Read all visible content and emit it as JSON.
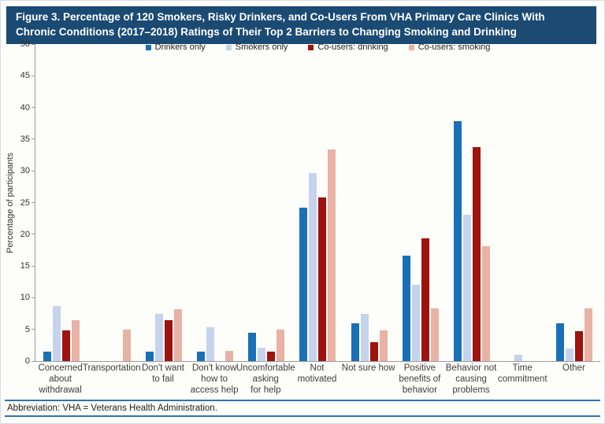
{
  "title": "Figure 3. Percentage of 120 Smokers, Risky Drinkers, and Co-Users From VHA Primary Care Clinics With Chronic Conditions (2017–2018) Ratings of Their Top 2 Barriers to Changing Smoking and Drinking",
  "footer_note": "Abbreviation: VHA = Veterans Health Administration.",
  "colors": {
    "title_bar_bg": "#1b4a73",
    "title_text": "#ffffff",
    "axis_line": "#9b9b9b",
    "footer_line": "#2e74b6",
    "drinkers_only": "#1a70b8",
    "smokers_only": "#c5d4ec",
    "cousers_drinking": "#9e130e",
    "cousers_smoking": "#e8b2a5"
  },
  "chart_data": {
    "type": "bar",
    "title": "Figure 3. Percentage of 120 Smokers, Risky Drinkers, and Co-Users From VHA Primary Care Clinics With Chronic Conditions (2017–2018) Ratings of Their Top 2 Barriers to Changing Smoking and Drinking",
    "xlabel": "",
    "ylabel": "Percentage of participants",
    "ylim": [
      0,
      50
    ],
    "ytick_step": 5,
    "grid": false,
    "legend_position": "top-center",
    "categories": [
      "Concerned about withdrawal",
      "Transportation",
      "Don't want to fail",
      "Don't know how to access help",
      "Uncomfortable asking for help",
      "Not motivated",
      "Not sure how",
      "Positive benefits of behavior",
      "Behavior not causing problems",
      "Time commitment",
      "Other"
    ],
    "category_lines": [
      [
        "Concerned",
        "about",
        "withdrawal"
      ],
      [
        "Transportation"
      ],
      [
        "Don't want",
        "to fail"
      ],
      [
        "Don't know",
        "how to",
        "access help"
      ],
      [
        "Uncomfortable",
        "asking",
        "for help"
      ],
      [
        "Not",
        "motivated"
      ],
      [
        "Not sure how"
      ],
      [
        "Positive",
        "benefits of",
        "behavior"
      ],
      [
        "Behavior not",
        "causing",
        "problems"
      ],
      [
        "Time",
        "commitment"
      ],
      [
        "Other"
      ]
    ],
    "series": [
      {
        "name": "Drinkers only",
        "color": "#1a70b8",
        "values": [
          1.5,
          0,
          1.5,
          1.5,
          4.5,
          24.2,
          6.0,
          16.6,
          37.8,
          0,
          6.0
        ]
      },
      {
        "name": "Smokers only",
        "color": "#c5d4ec",
        "values": [
          8.7,
          0,
          7.5,
          5.3,
          2.1,
          29.7,
          7.5,
          12.0,
          23.1,
          1.0,
          2.0
        ]
      },
      {
        "name": "Co-users: drinking",
        "color": "#9e130e",
        "values": [
          4.8,
          0,
          6.4,
          0,
          1.5,
          25.8,
          3.0,
          19.3,
          33.8,
          0,
          4.7
        ]
      },
      {
        "name": "Co-users: smoking",
        "color": "#e8b2a5",
        "values": [
          6.5,
          5.0,
          8.2,
          1.6,
          5.0,
          33.4,
          4.9,
          8.3,
          18.1,
          0,
          8.3
        ]
      }
    ]
  }
}
